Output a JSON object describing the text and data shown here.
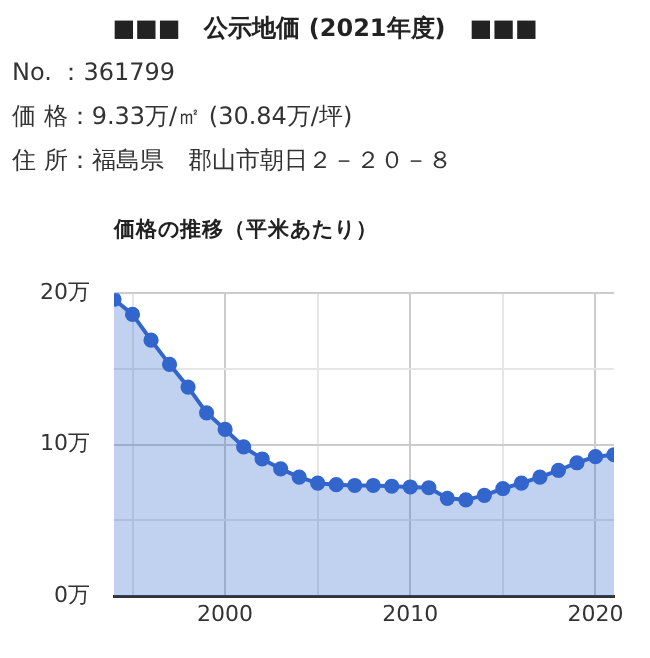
{
  "chart_data": {
    "type": "area",
    "title": "■■■　公示地価 (2021年度)　■■■",
    "subtitle": "価格の推移（平米あたり）",
    "annotations": [
      "No. ：361799",
      "価 格：9.33万/㎡ (30.84万/坪)",
      "住 所：福島県　郡山市朝日２－２０－８"
    ],
    "x": [
      1994,
      1995,
      1996,
      1997,
      1998,
      1999,
      2000,
      2001,
      2002,
      2003,
      2004,
      2005,
      2006,
      2007,
      2008,
      2009,
      2010,
      2011,
      2012,
      2013,
      2014,
      2015,
      2016,
      2017,
      2018,
      2019,
      2020,
      2021
    ],
    "series": [
      {
        "color": "#3366cc",
        "values": [
          19.6,
          18.6,
          16.9,
          15.3,
          13.8,
          12.1,
          11.0,
          9.85,
          9.05,
          8.4,
          7.85,
          7.45,
          7.35,
          7.3,
          7.3,
          7.25,
          7.2,
          7.15,
          6.45,
          6.35,
          6.65,
          7.1,
          7.45,
          7.85,
          8.3,
          8.8,
          9.2,
          9.33
        ]
      }
    ],
    "xlim": [
      1994,
      2021
    ],
    "xticks": [
      {
        "value": 1995,
        "label": null
      },
      2000,
      {
        "value": 2005,
        "label": null
      },
      2010,
      {
        "value": 2015,
        "label": null
      },
      2020
    ],
    "ylim": [
      0,
      20
    ],
    "yticks": [
      {
        "value": 0,
        "label": "0万"
      },
      {
        "value": 5,
        "label": null
      },
      {
        "value": 10,
        "label": "10万"
      },
      {
        "value": 15,
        "label": null
      },
      {
        "value": 20,
        "label": "20万"
      }
    ],
    "grid": true,
    "legend": false,
    "marker": "circle",
    "line_style": "solid"
  }
}
